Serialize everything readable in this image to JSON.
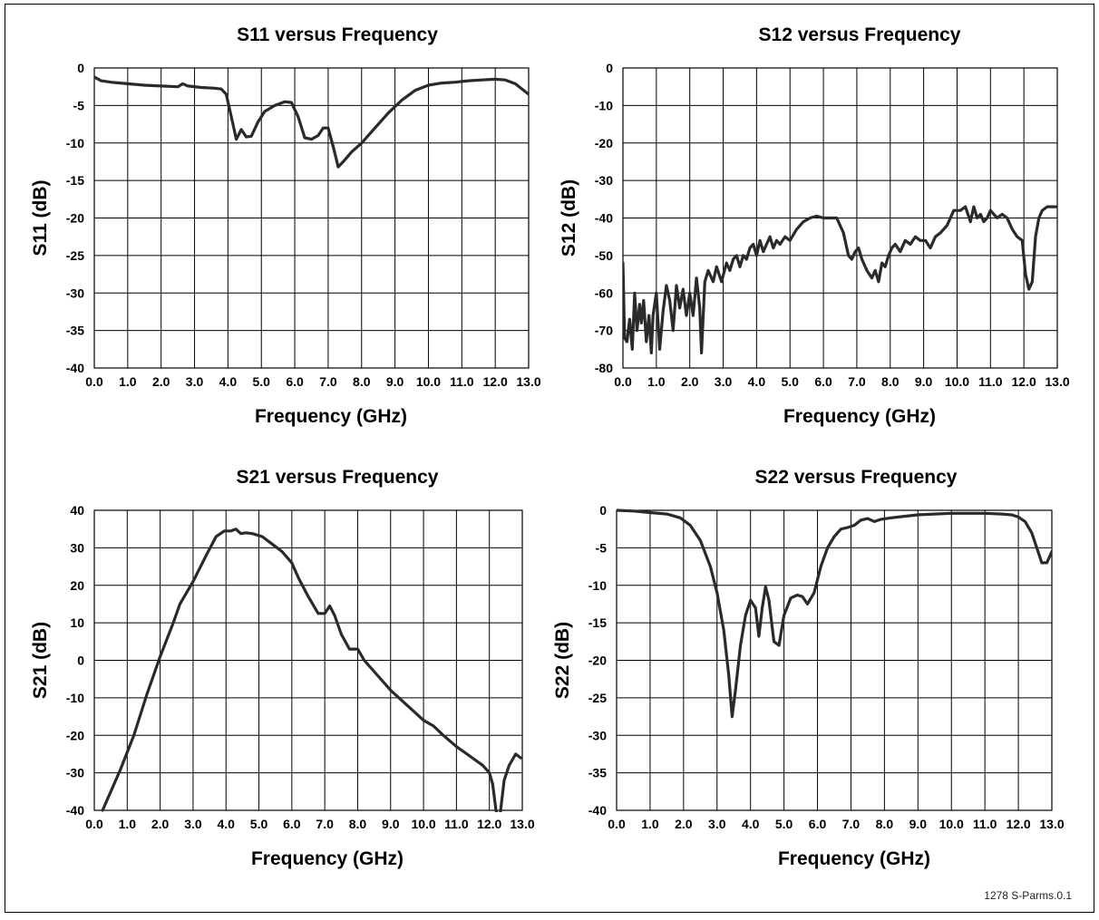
{
  "footnote": "1278 S-Parms.0.1",
  "chart_data": [
    {
      "type": "line",
      "title": "S11 versus Frequency",
      "xlabel": "Frequency (GHz)",
      "ylabel": "S11 (dB)",
      "xlim": [
        0,
        13
      ],
      "ylim": [
        -40,
        0
      ],
      "xticks": [
        "0.0",
        "1.0",
        "2.0",
        "3.0",
        "4.0",
        "5.0",
        "6.0",
        "7.0",
        "8.0",
        "9.0",
        "10.0",
        "11.0",
        "12.0",
        "13.0"
      ],
      "yticks": [
        "0",
        "-5",
        "-10",
        "-15",
        "-20",
        "-25",
        "-30",
        "-35",
        "-40"
      ],
      "grid": true,
      "series": [
        {
          "color": "#2a2a2a",
          "x": [
            0.0,
            0.2,
            0.5,
            1.0,
            1.5,
            2.0,
            2.5,
            2.65,
            2.8,
            3.2,
            3.6,
            3.8,
            3.95,
            4.1,
            4.25,
            4.4,
            4.55,
            4.7,
            4.9,
            5.1,
            5.4,
            5.7,
            5.9,
            6.1,
            6.3,
            6.5,
            6.7,
            6.85,
            7.0,
            7.15,
            7.3,
            7.45,
            7.7,
            8.0,
            8.4,
            8.8,
            9.2,
            9.6,
            10.0,
            10.4,
            10.8,
            11.2,
            11.6,
            12.0,
            12.3,
            12.6,
            13.0
          ],
          "y": [
            -1.2,
            -1.7,
            -1.9,
            -2.1,
            -2.3,
            -2.4,
            -2.5,
            -2.1,
            -2.4,
            -2.6,
            -2.7,
            -2.8,
            -3.5,
            -6.5,
            -9.5,
            -8.2,
            -9.2,
            -9.1,
            -7.2,
            -5.8,
            -5.0,
            -4.5,
            -4.6,
            -6.5,
            -9.3,
            -9.5,
            -9.0,
            -8.0,
            -8.0,
            -10.5,
            -13.2,
            -12.5,
            -11.2,
            -10.0,
            -8.0,
            -6.0,
            -4.3,
            -3.0,
            -2.3,
            -2.0,
            -1.9,
            -1.7,
            -1.6,
            -1.5,
            -1.6,
            -2.1,
            -3.5
          ]
        }
      ]
    },
    {
      "type": "line",
      "title": "S12 versus Frequency",
      "xlabel": "Frequency (GHz)",
      "ylabel": "S12 (dB)",
      "xlim": [
        0,
        13
      ],
      "ylim": [
        -80,
        0
      ],
      "xticks": [
        "0.0",
        "1.0",
        "2.0",
        "3.0",
        "4.0",
        "5.0",
        "6.0",
        "7.0",
        "8.0",
        "9.0",
        "10.0",
        "11.0",
        "12.0",
        "13.0"
      ],
      "yticks": [
        "0",
        "-10",
        "-20",
        "-30",
        "-40",
        "-50",
        "-60",
        "-70",
        "-80"
      ],
      "grid": true,
      "series": [
        {
          "color": "#2a2a2a",
          "x": [
            0.0,
            0.05,
            0.12,
            0.2,
            0.28,
            0.35,
            0.42,
            0.5,
            0.55,
            0.62,
            0.7,
            0.78,
            0.85,
            0.9,
            1.0,
            1.1,
            1.2,
            1.3,
            1.4,
            1.5,
            1.6,
            1.7,
            1.8,
            1.9,
            2.0,
            2.1,
            2.2,
            2.3,
            2.35,
            2.45,
            2.55,
            2.7,
            2.8,
            2.95,
            3.1,
            3.2,
            3.3,
            3.4,
            3.5,
            3.6,
            3.7,
            3.8,
            3.9,
            4.0,
            4.1,
            4.2,
            4.3,
            4.4,
            4.5,
            4.6,
            4.7,
            4.85,
            5.0,
            5.2,
            5.4,
            5.6,
            5.8,
            6.0,
            6.2,
            6.4,
            6.6,
            6.75,
            6.85,
            6.95,
            7.05,
            7.15,
            7.3,
            7.45,
            7.55,
            7.65,
            7.75,
            7.85,
            7.95,
            8.05,
            8.15,
            8.3,
            8.45,
            8.6,
            8.75,
            8.9,
            9.05,
            9.2,
            9.35,
            9.5,
            9.7,
            9.9,
            10.1,
            10.25,
            10.4,
            10.5,
            10.6,
            10.7,
            10.8,
            10.9,
            11.0,
            11.1,
            11.2,
            11.35,
            11.5,
            11.65,
            11.8,
            11.95,
            12.05,
            12.15,
            12.25,
            12.35,
            12.45,
            12.55,
            12.7,
            12.85,
            13.0
          ],
          "y": [
            -52,
            -72,
            -73,
            -67,
            -75,
            -60,
            -70,
            -63,
            -68,
            -62,
            -73,
            -66,
            -76,
            -66,
            -60,
            -75,
            -65,
            -58,
            -62,
            -70,
            -58,
            -64,
            -59,
            -66,
            -60,
            -66,
            -56,
            -64,
            -76,
            -57,
            -54,
            -57,
            -53,
            -57,
            -52,
            -54,
            -51,
            -50,
            -53,
            -50,
            -51,
            -48,
            -47,
            -50,
            -46,
            -49,
            -47,
            -45,
            -48,
            -46,
            -47,
            -45,
            -46,
            -43,
            -41,
            -40,
            -39.5,
            -40,
            -40,
            -40,
            -44,
            -50,
            -51,
            -49,
            -48,
            -51,
            -54,
            -56,
            -54,
            -57,
            -52,
            -53,
            -50,
            -48,
            -47,
            -49,
            -46,
            -47,
            -45,
            -46,
            -46,
            -48,
            -45,
            -44,
            -42,
            -38,
            -38,
            -37,
            -41,
            -37,
            -40,
            -39,
            -41,
            -40,
            -38,
            -39,
            -40,
            -39,
            -40,
            -43,
            -45,
            -46,
            -55,
            -59,
            -57,
            -45,
            -40,
            -38,
            -37,
            -37,
            -37
          ]
        }
      ]
    },
    {
      "type": "line",
      "title": "S21 versus Frequency",
      "xlabel": "Frequency (GHz)",
      "ylabel": "S21 (dB)",
      "xlim": [
        0,
        13
      ],
      "ylim": [
        -40,
        40
      ],
      "xticks": [
        "0.0",
        "1.0",
        "2.0",
        "3.0",
        "4.0",
        "5.0",
        "6.0",
        "7.0",
        "8.0",
        "9.0",
        "10.0",
        "11.0",
        "12.0",
        "13.0"
      ],
      "yticks": [
        "40",
        "30",
        "20",
        "10",
        "0",
        "-10",
        "-20",
        "-30",
        "-40"
      ],
      "grid": true,
      "series": [
        {
          "color": "#2a2a2a",
          "x": [
            0.25,
            0.5,
            0.8,
            1.2,
            1.6,
            2.0,
            2.4,
            2.6,
            3.0,
            3.4,
            3.7,
            3.95,
            4.15,
            4.3,
            4.45,
            4.6,
            4.8,
            5.1,
            5.4,
            5.7,
            6.0,
            6.2,
            6.5,
            6.8,
            7.0,
            7.15,
            7.3,
            7.5,
            7.75,
            8.0,
            8.2,
            8.6,
            9.0,
            9.5,
            10.0,
            10.3,
            10.6,
            11.0,
            11.4,
            11.8,
            12.0,
            12.1,
            12.2,
            12.3,
            12.45,
            12.6,
            12.8,
            12.95
          ],
          "y": [
            -40,
            -35,
            -29,
            -20,
            -9,
            1,
            10,
            15,
            21,
            28,
            33,
            34.5,
            34.5,
            35,
            33.8,
            34,
            33.8,
            33,
            31,
            29,
            26,
            22,
            17,
            12.5,
            12.5,
            14.5,
            12,
            7,
            3,
            3,
            0,
            -4,
            -8,
            -12,
            -16,
            -17.5,
            -20,
            -23,
            -25.5,
            -28,
            -30,
            -33,
            -40,
            -43,
            -32,
            -28,
            -25,
            -26
          ]
        }
      ]
    },
    {
      "type": "line",
      "title": "S22 versus Frequency",
      "xlabel": "Frequency (GHz)",
      "ylabel": "S22 (dB)",
      "xlim": [
        0,
        13
      ],
      "ylim": [
        -40,
        0
      ],
      "xticks": [
        "0.0",
        "1.0",
        "2.0",
        "3.0",
        "4.0",
        "5.0",
        "6.0",
        "7.0",
        "8.0",
        "9.0",
        "10.0",
        "11.0",
        "12.0",
        "13.0"
      ],
      "yticks": [
        "0",
        "-5",
        "-10",
        "-15",
        "-20",
        "-25",
        "-30",
        "-35",
        "-40"
      ],
      "grid": true,
      "series": [
        {
          "color": "#2a2a2a",
          "x": [
            0.0,
            0.5,
            1.0,
            1.5,
            1.9,
            2.2,
            2.5,
            2.8,
            3.0,
            3.2,
            3.35,
            3.45,
            3.55,
            3.7,
            3.85,
            4.0,
            4.15,
            4.25,
            4.35,
            4.45,
            4.55,
            4.7,
            4.85,
            5.0,
            5.2,
            5.4,
            5.55,
            5.7,
            5.9,
            6.1,
            6.3,
            6.5,
            6.7,
            6.9,
            7.1,
            7.3,
            7.5,
            7.7,
            7.9,
            8.2,
            8.6,
            9.0,
            9.5,
            10.0,
            10.5,
            11.0,
            11.5,
            11.8,
            12.0,
            12.2,
            12.4,
            12.55,
            12.7,
            12.85,
            13.0
          ],
          "y": [
            0,
            -0.1,
            -0.3,
            -0.5,
            -1.0,
            -2.0,
            -4.0,
            -7.5,
            -11.0,
            -16.0,
            -22.0,
            -27.5,
            -24.0,
            -18.0,
            -14.0,
            -12.0,
            -13.0,
            -16.8,
            -13.0,
            -10.2,
            -12.0,
            -17.5,
            -18.0,
            -14.0,
            -11.7,
            -11.3,
            -11.5,
            -12.5,
            -11.0,
            -7.5,
            -5.0,
            -3.5,
            -2.5,
            -2.3,
            -2.0,
            -1.3,
            -1.1,
            -1.5,
            -1.2,
            -1.0,
            -0.8,
            -0.6,
            -0.5,
            -0.4,
            -0.4,
            -0.4,
            -0.5,
            -0.6,
            -0.9,
            -1.5,
            -3.0,
            -5.0,
            -7.0,
            -7.0,
            -5.5
          ]
        }
      ]
    }
  ]
}
